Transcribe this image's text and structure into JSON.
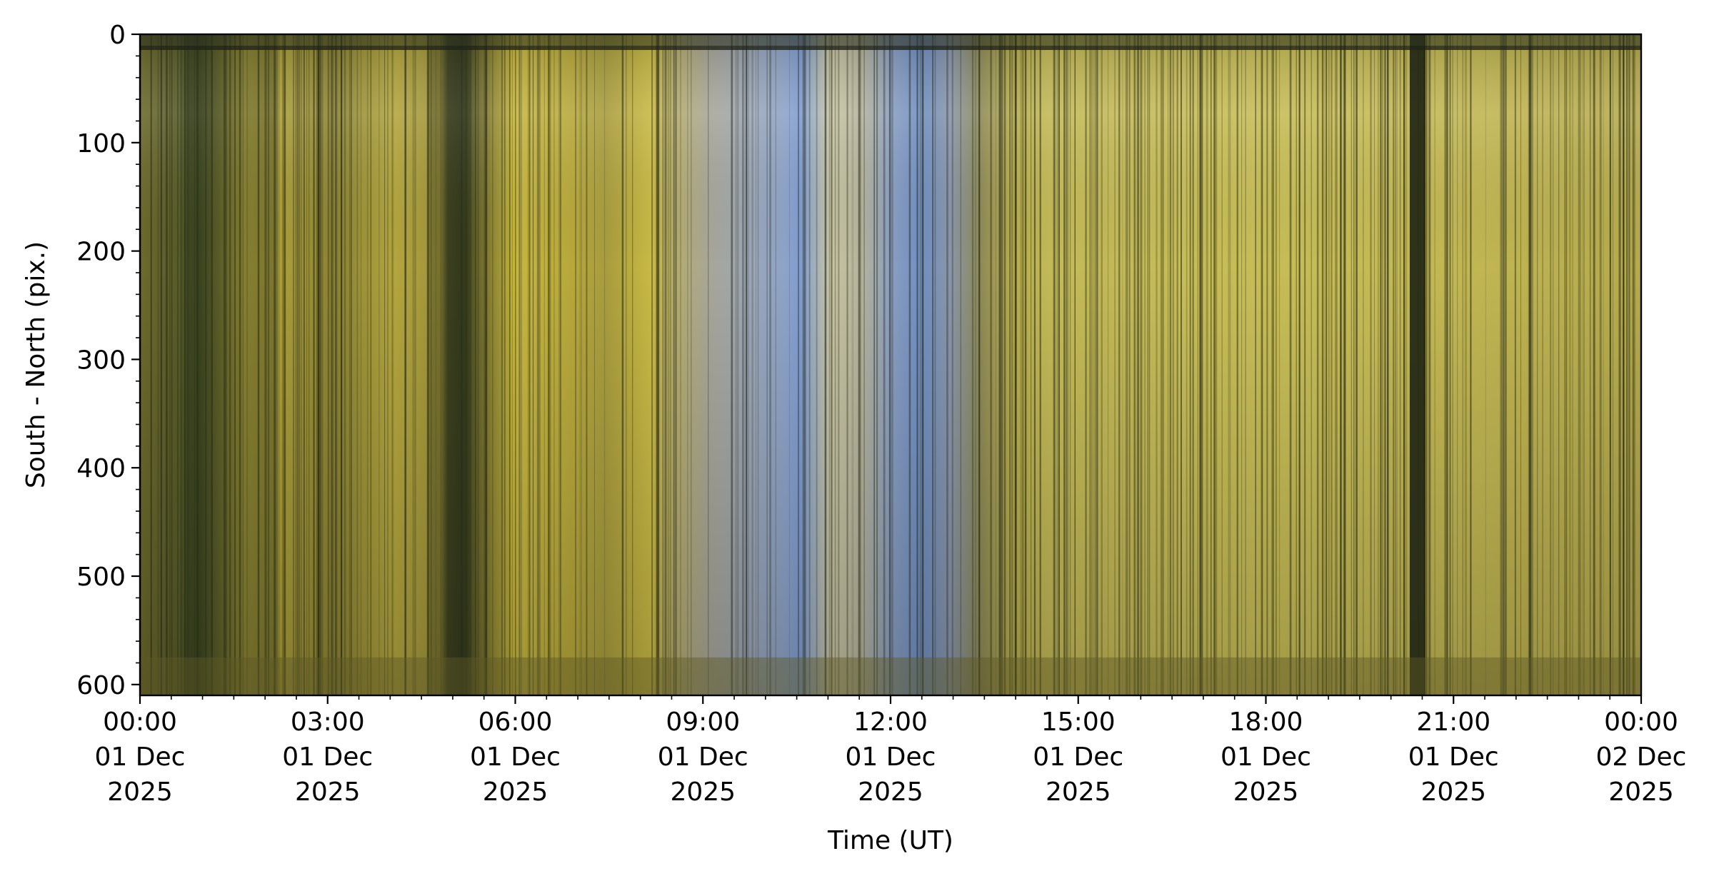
{
  "chart_data": {
    "type": "heatmap",
    "title": "",
    "xlabel": "Time (UT)",
    "ylabel": "South - North (pix.)",
    "x_ticks": [
      {
        "time": "00:00",
        "date": "01 Dec",
        "year": "2025"
      },
      {
        "time": "03:00",
        "date": "01 Dec",
        "year": "2025"
      },
      {
        "time": "06:00",
        "date": "01 Dec",
        "year": "2025"
      },
      {
        "time": "09:00",
        "date": "01 Dec",
        "year": "2025"
      },
      {
        "time": "12:00",
        "date": "01 Dec",
        "year": "2025"
      },
      {
        "time": "15:00",
        "date": "01 Dec",
        "year": "2025"
      },
      {
        "time": "18:00",
        "date": "01 Dec",
        "year": "2025"
      },
      {
        "time": "21:00",
        "date": "01 Dec",
        "year": "2025"
      },
      {
        "time": "00:00",
        "date": "02 Dec",
        "year": "2025"
      }
    ],
    "y_ticks": [
      "0",
      "100",
      "200",
      "300",
      "400",
      "500",
      "600"
    ],
    "y_tick_values": [
      0,
      100,
      200,
      300,
      400,
      500,
      600
    ],
    "x_range_hours": [
      0,
      24
    ],
    "y_range": [
      0,
      610
    ],
    "y_inverted": true,
    "grid": false,
    "colormap_description": "true-color keogram; olive-yellow sky at night with a blue/grey daylight band near 08:30-13:00 UT",
    "colors": {
      "night_yellow": "#d2c446",
      "night_dark": "#3a4322",
      "day_blue": "#7a9ac8",
      "day_grey": "#b8b7a3"
    }
  }
}
